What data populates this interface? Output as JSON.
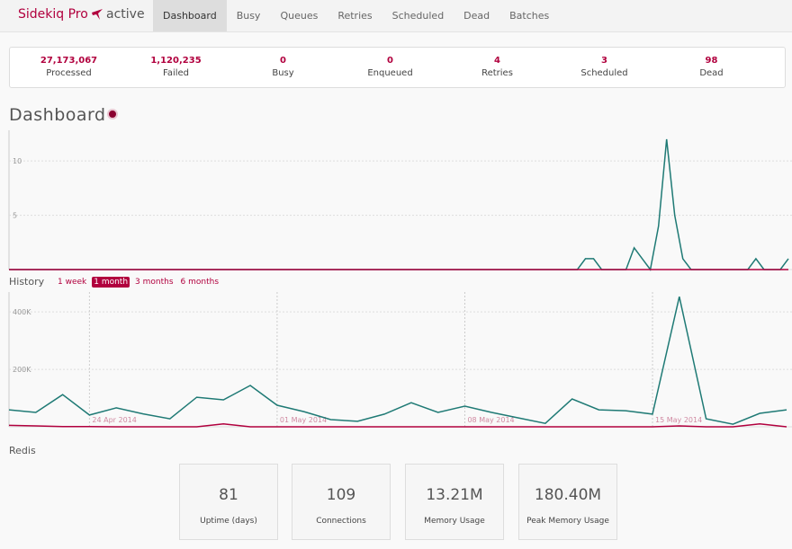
{
  "nav": {
    "brand": "Sidekiq Pro",
    "status": "active",
    "links": [
      "Dashboard",
      "Busy",
      "Queues",
      "Retries",
      "Scheduled",
      "Dead",
      "Batches"
    ]
  },
  "summary": [
    {
      "value": "27,173,067",
      "label": "Processed"
    },
    {
      "value": "1,120,235",
      "label": "Failed"
    },
    {
      "value": "0",
      "label": "Busy"
    },
    {
      "value": "0",
      "label": "Enqueued"
    },
    {
      "value": "4",
      "label": "Retries"
    },
    {
      "value": "3",
      "label": "Scheduled"
    },
    {
      "value": "98",
      "label": "Dead"
    }
  ],
  "dashboard_title": "Dashboard",
  "history_title": "History",
  "history_ranges": [
    "1 week",
    "1 month",
    "3 months",
    "6 months"
  ],
  "redis_title": "Redis",
  "redis_stats": [
    {
      "value": "81",
      "label": "Uptime (days)"
    },
    {
      "value": "109",
      "label": "Connections"
    },
    {
      "value": "13.21M",
      "label": "Memory Usage"
    },
    {
      "value": "180.40M",
      "label": "Peak Memory Usage"
    }
  ],
  "chart_data": [
    {
      "type": "line",
      "ylim": [
        0,
        12
      ],
      "yticks": [
        5,
        10
      ],
      "grid": true,
      "series": [
        {
          "color": "#1f7a75",
          "values": [
            0,
            0,
            0,
            0,
            0,
            0,
            0,
            0,
            0,
            0,
            0,
            0,
            0,
            0,
            0,
            0,
            0,
            0,
            0,
            0,
            0,
            0,
            0,
            0,
            0,
            0,
            0,
            0,
            0,
            0,
            0,
            0,
            0,
            0,
            0,
            0,
            0,
            0,
            0,
            0,
            0,
            0,
            0,
            0,
            0,
            0,
            0,
            0,
            0,
            0,
            0,
            0,
            0,
            0,
            0,
            0,
            0,
            0,
            0,
            0,
            0,
            0,
            0,
            0,
            0,
            0,
            0,
            0,
            0,
            0,
            0,
            1,
            1,
            0,
            0,
            0,
            0,
            2,
            1,
            0,
            4,
            12,
            5,
            1,
            0,
            0,
            0,
            0,
            0,
            0,
            0,
            0,
            1,
            0,
            0,
            0,
            1
          ]
        },
        {
          "color": "#b1003e",
          "values": [
            0,
            0,
            0,
            0,
            0,
            0,
            0,
            0,
            0,
            0,
            0,
            0,
            0,
            0,
            0,
            0,
            0,
            0,
            0,
            0,
            0,
            0,
            0,
            0,
            0,
            0,
            0,
            0,
            0,
            0,
            0,
            0,
            0,
            0,
            0,
            0,
            0,
            0,
            0,
            0,
            0,
            0,
            0,
            0,
            0,
            0,
            0,
            0,
            0,
            0,
            0,
            0,
            0,
            0,
            0,
            0,
            0,
            0,
            0,
            0,
            0,
            0,
            0,
            0,
            0,
            0,
            0,
            0,
            0,
            0,
            0,
            0,
            0,
            0,
            0,
            0,
            0,
            0,
            0,
            0,
            0,
            0,
            0,
            0,
            0,
            0,
            0,
            0,
            0,
            0,
            0,
            0,
            0,
            0,
            0,
            0,
            0
          ]
        }
      ]
    },
    {
      "type": "line",
      "x": [
        "2014-04-21",
        "2014-04-22",
        "2014-04-23",
        "2014-04-24",
        "2014-04-25",
        "2014-04-26",
        "2014-04-27",
        "2014-04-28",
        "2014-04-29",
        "2014-04-30",
        "2014-05-01",
        "2014-05-02",
        "2014-05-03",
        "2014-05-04",
        "2014-05-05",
        "2014-05-06",
        "2014-05-07",
        "2014-05-08",
        "2014-05-09",
        "2014-05-10",
        "2014-05-11",
        "2014-05-12",
        "2014-05-13",
        "2014-05-14",
        "2014-05-15",
        "2014-05-16",
        "2014-05-17",
        "2014-05-18",
        "2014-05-19",
        "2014-05-20"
      ],
      "xlim": [
        "2014-04-21",
        "2014-05-20"
      ],
      "xticks": [
        {
          "value": "2014-04-24",
          "label": "24 Apr 2014"
        },
        {
          "value": "2014-05-01",
          "label": "01 May 2014"
        },
        {
          "value": "2014-05-08",
          "label": "08 May 2014"
        },
        {
          "value": "2014-05-15",
          "label": "15 May 2014"
        }
      ],
      "ylim": [
        0,
        460000
      ],
      "yticks": [
        {
          "value": 200000,
          "label": "200K"
        },
        {
          "value": 400000,
          "label": "400K"
        }
      ],
      "grid": true,
      "series": [
        {
          "color": "#1f7a75",
          "values": [
            59000,
            50000,
            112000,
            41000,
            66000,
            45000,
            28000,
            103000,
            94000,
            144000,
            75000,
            53000,
            25000,
            19000,
            44000,
            84000,
            50000,
            72000,
            50000,
            31000,
            12000,
            97000,
            59000,
            56000,
            44000,
            453000,
            28000,
            9000,
            47000,
            59000
          ]
        },
        {
          "color": "#b1003e",
          "values": [
            5000,
            3000,
            1000,
            1000,
            0,
            0,
            0,
            0,
            10000,
            0,
            0,
            0,
            0,
            0,
            0,
            0,
            0,
            0,
            0,
            0,
            0,
            0,
            0,
            0,
            0,
            3000,
            0,
            0,
            10000,
            0
          ]
        }
      ]
    }
  ]
}
